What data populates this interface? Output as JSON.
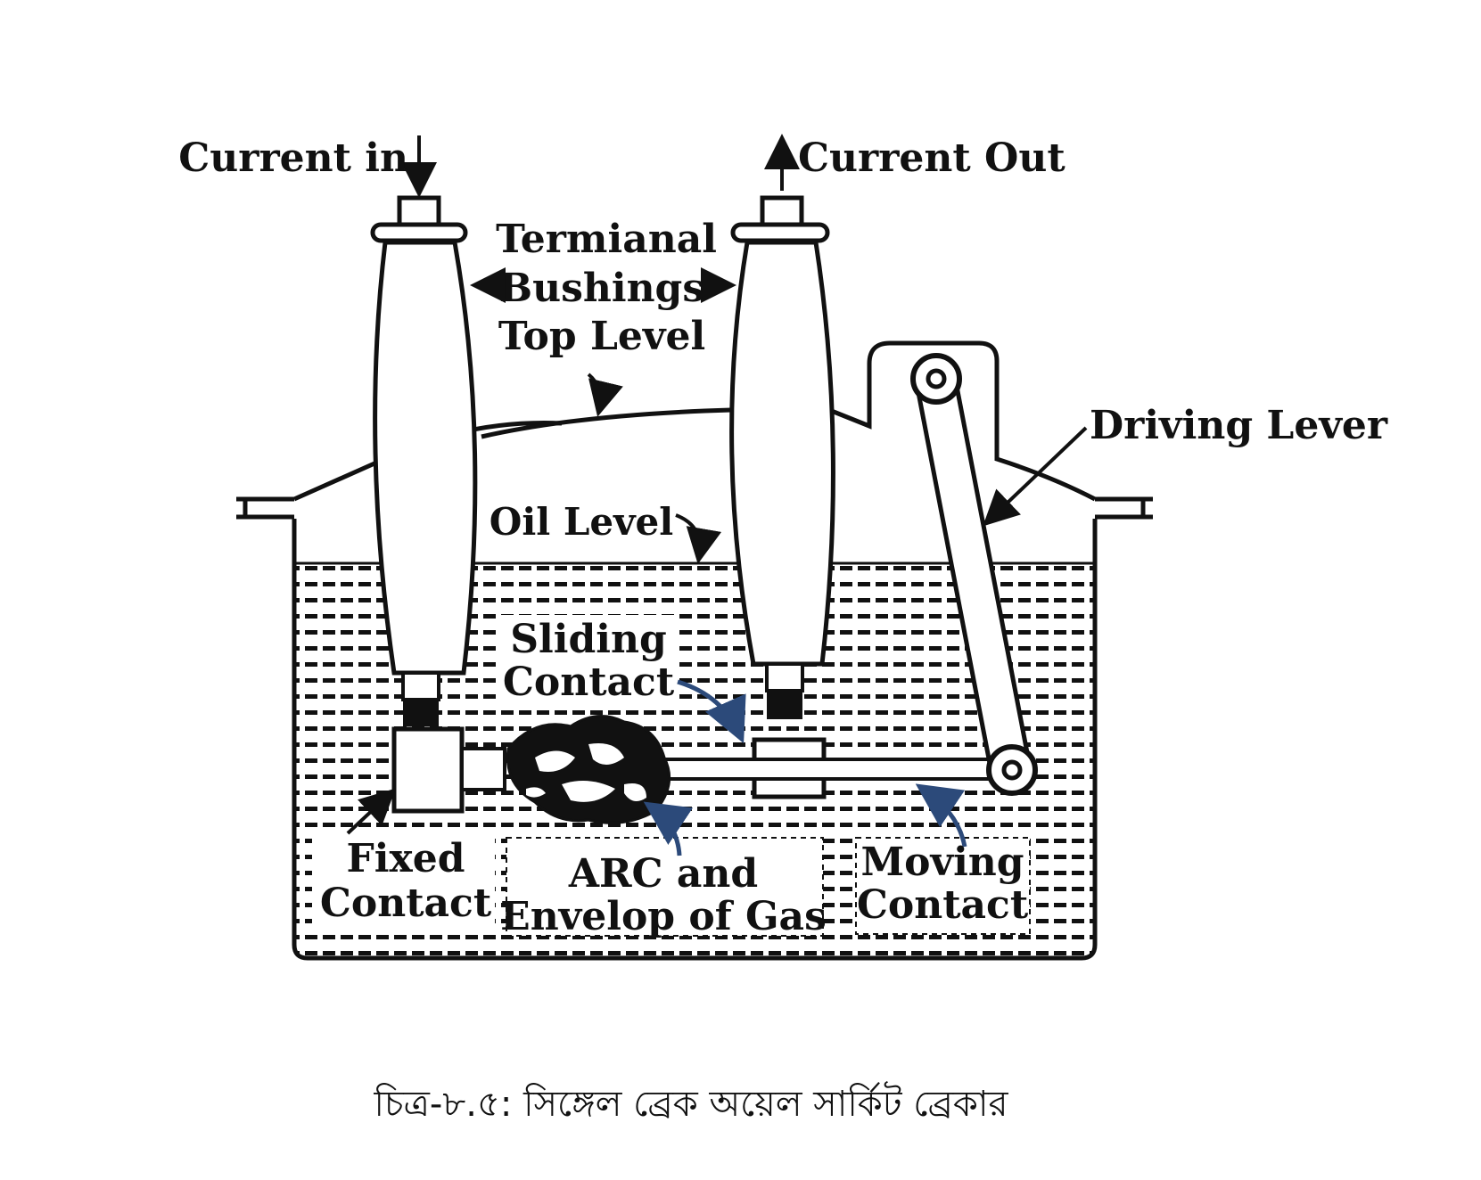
{
  "labels": {
    "current_in": "Current in",
    "current_out": "Current Out",
    "terminal_bushings_line1": "Termianal",
    "terminal_bushings_line2": "Bushings",
    "top_level": "Top Level",
    "driving_lever": "Driving Lever",
    "oil_level": "Oil Level",
    "sliding_contact_line1": "Sliding",
    "sliding_contact_line2": "Contact",
    "fixed_contact_line1": "Fixed",
    "fixed_contact_line2": "Contact",
    "arc_line1": "ARC and",
    "arc_line2": "Envelop of Gas",
    "moving_contact_line1": "Moving",
    "moving_contact_line2": "Contact"
  },
  "caption": "চিত্র-৮.৫: সিঙ্গেল ব্রেক অয়েল সার্কিট ব্রেকার",
  "colors": {
    "ink": "#111111",
    "oil_dash": "#111111",
    "pointer_accent": "#2c4a7a",
    "background": "#ffffff"
  }
}
